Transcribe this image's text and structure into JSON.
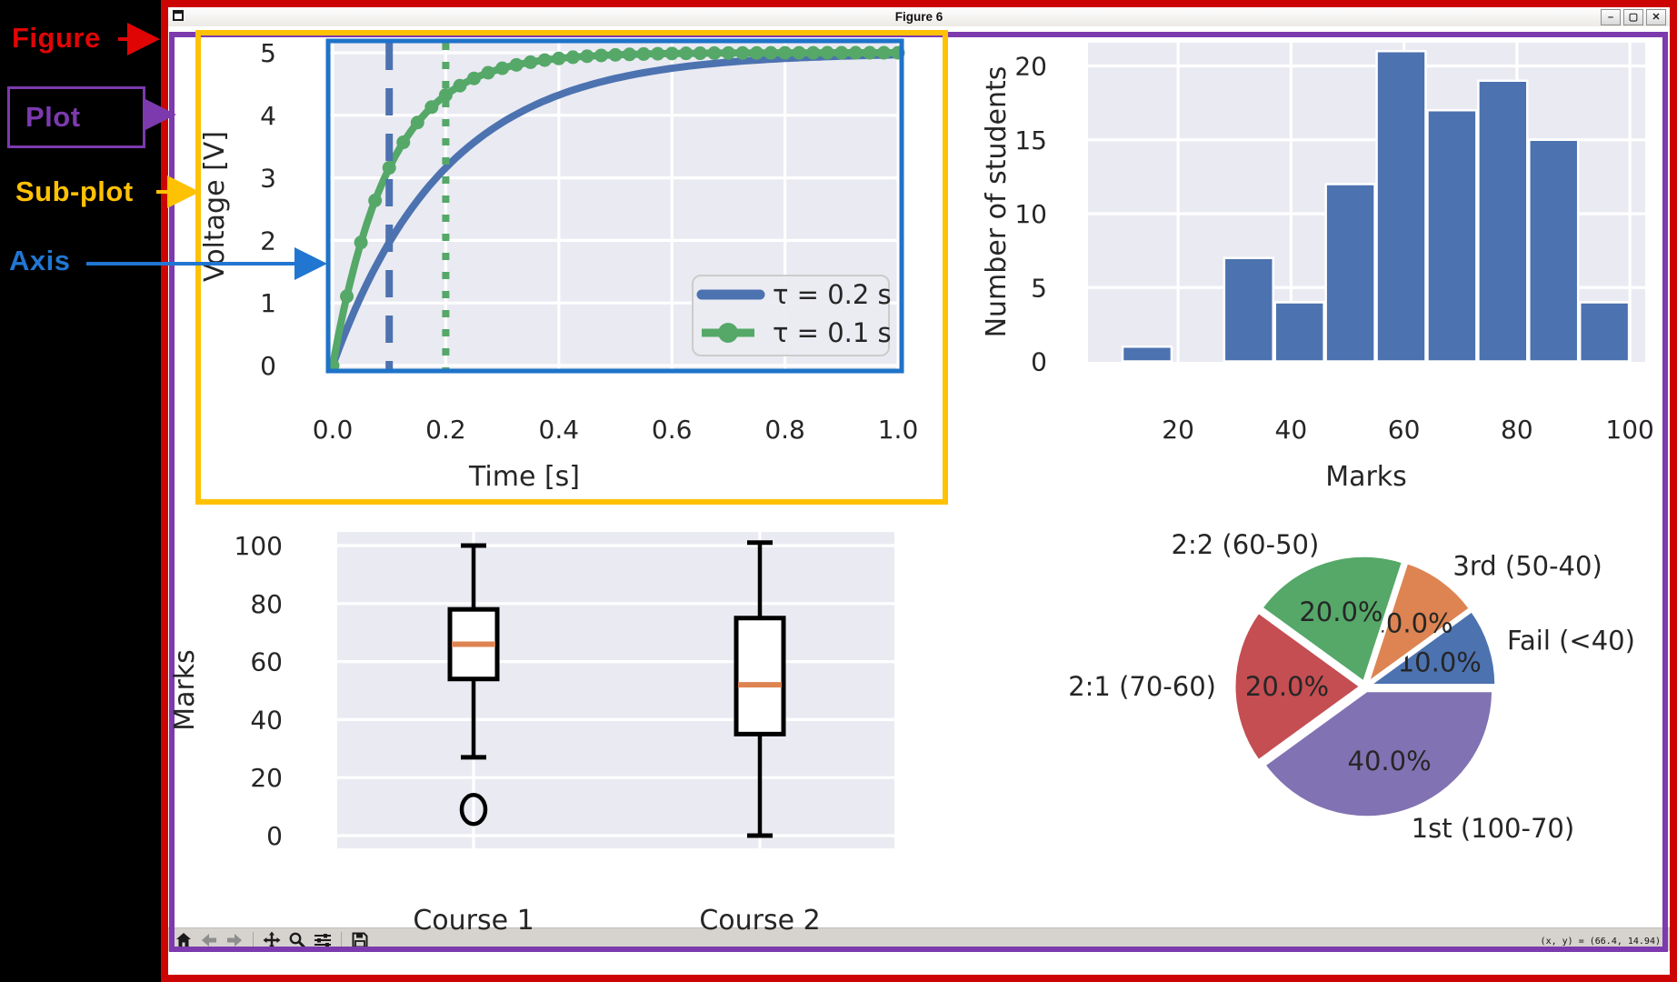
{
  "window": {
    "title": "Figure 6",
    "minimize_label": "–",
    "maximize_label": "▢",
    "close_label": "✕"
  },
  "annotations": {
    "figure": "Figure",
    "plot": "Plot",
    "subplot": "Sub-plot",
    "axis": "Axis"
  },
  "toolbar": {
    "tools": [
      "home",
      "back",
      "forward",
      "pan",
      "zoom",
      "configure-subplots",
      "save"
    ],
    "status": "(x, y) = (66.4, 14.94)"
  },
  "colors": {
    "figure_border": "#cc0404",
    "plot_border": "#7c3aae",
    "subplot_border": "#ffc103",
    "axis_border": "#1e73c9",
    "axes_background": "#eaeaf2",
    "grid": "#ffffff",
    "text": "#262626",
    "blue": "#4c72b0",
    "green": "#55a868",
    "orange": "#dd8452",
    "red": "#c44e52",
    "purple": "#8172b3"
  },
  "chart_data": [
    {
      "type": "line",
      "xlabel": "Time [s]",
      "ylabel": "Voltage [V]",
      "x_ticks": [
        "0.0",
        "0.2",
        "0.4",
        "0.6",
        "0.8",
        "1.0"
      ],
      "y_ticks": [
        "0",
        "1",
        "2",
        "3",
        "4",
        "5"
      ],
      "xlim": [
        0,
        1
      ],
      "ylim": [
        0,
        5
      ],
      "grid": true,
      "series": [
        {
          "name": "τ = 0.2 s",
          "color": "#4c72b0",
          "amplitude": 5,
          "tau": 0.2,
          "markers": false
        },
        {
          "name": "τ = 0.1 s",
          "color": "#55a868",
          "amplitude": 5,
          "tau": 0.1,
          "markers": true,
          "marker_interval": 0.025
        }
      ],
      "vlines": [
        {
          "x": 0.1,
          "color": "#4c72b0",
          "style": "dashed"
        },
        {
          "x": 0.2,
          "color": "#55a868",
          "style": "dotted"
        }
      ],
      "legend": {
        "position": "lower right",
        "entries": [
          "τ = 0.2 s",
          "τ = 0.1 s"
        ]
      }
    },
    {
      "type": "bar",
      "xlabel": "Marks",
      "ylabel": "Number of students",
      "x_ticks": [
        20,
        40,
        60,
        80,
        100
      ],
      "y_ticks": [
        0,
        5,
        10,
        15,
        20
      ],
      "bin_start": 10,
      "bin_end": 100,
      "values": [
        1,
        0,
        7,
        4,
        12,
        21,
        17,
        19,
        15,
        4
      ],
      "color": "#4c72b0",
      "ylim": [
        0,
        21.5
      ],
      "grid": true
    },
    {
      "type": "box",
      "ylabel": "Marks",
      "categories": [
        "Course 1",
        "Course 2"
      ],
      "y_ticks": [
        0,
        20,
        40,
        60,
        80,
        100
      ],
      "ylim": [
        -5,
        105
      ],
      "grid": true,
      "median_color": "#dd8452",
      "boxes": [
        {
          "whislo": 27,
          "q1": 54,
          "med": 66,
          "q3": 78,
          "whishi": 100,
          "outliers": [
            9
          ]
        },
        {
          "whislo": 0,
          "q1": 35,
          "med": 52,
          "q3": 75,
          "whishi": 101,
          "outliers": []
        }
      ]
    },
    {
      "type": "pie",
      "labels": [
        "Fail (<40)",
        "3rd (50-40)",
        "2:2 (60-50)",
        "2:1 (70-60)",
        "1st (100-70)"
      ],
      "values": [
        10,
        10,
        20,
        20,
        40
      ],
      "pct_labels": [
        "10.0%",
        "10.0%",
        "20.0%",
        "20.0%",
        "40.0%"
      ],
      "colors": [
        "#4c72b0",
        "#dd8452",
        "#55a868",
        "#c44e52",
        "#8172b3"
      ],
      "start_angle": 0,
      "counterclock": true
    }
  ]
}
